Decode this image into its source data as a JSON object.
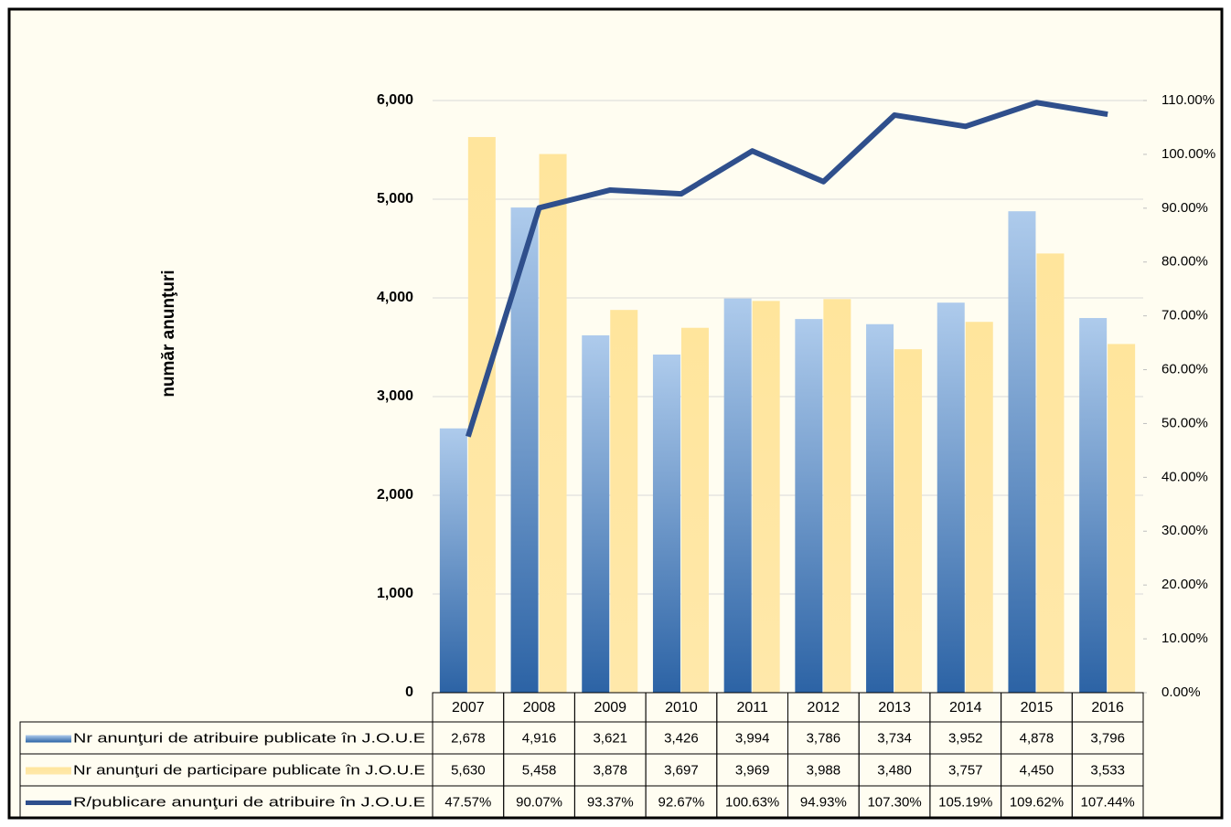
{
  "chart_data": {
    "type": "bar",
    "y_label": "număr anunţuri",
    "categories": [
      "2007",
      "2008",
      "2009",
      "2010",
      "2011",
      "2012",
      "2013",
      "2014",
      "2015",
      "2016"
    ],
    "series": [
      {
        "name": "Nr anunţuri de atribuire publicate în J.O.U.E",
        "color": "#4f86c6",
        "type": "bar",
        "values": [
          2678,
          4916,
          3621,
          3426,
          3994,
          3786,
          3734,
          3952,
          4878,
          3796
        ],
        "value_labels": [
          "2,678",
          "4,916",
          "3,621",
          "3,426",
          "3,994",
          "3,786",
          "3,734",
          "3,952",
          "4,878",
          "3,796"
        ]
      },
      {
        "name": "Nr anunţuri de participare publicate în J.O.U.E",
        "color": "#ffe59c",
        "type": "bar",
        "values": [
          5630,
          5458,
          3878,
          3697,
          3969,
          3988,
          3480,
          3757,
          4450,
          3533
        ],
        "value_labels": [
          "5,630",
          "5,458",
          "3,878",
          "3,697",
          "3,969",
          "3,988",
          "3,480",
          "3,757",
          "4,450",
          "3,533"
        ]
      },
      {
        "name": "R/publicare anunţuri de atribuire în J.O.U.E",
        "color": "#2f4f8c",
        "type": "line",
        "axis": "y2",
        "values": [
          47.57,
          90.07,
          93.37,
          92.67,
          100.63,
          94.93,
          107.3,
          105.19,
          109.62,
          107.44
        ],
        "value_labels": [
          "47.57%",
          "90.07%",
          "93.37%",
          "92.67%",
          "100.63%",
          "94.93%",
          "107.30%",
          "105.19%",
          "109.62%",
          "107.44%"
        ]
      }
    ],
    "ylim": [
      0,
      6000
    ],
    "yticks": [
      0,
      {
        "value": 1000,
        "label": "1,000"
      },
      {
        "value": 2000,
        "label": "2,000"
      },
      {
        "value": 3000,
        "label": "3,000"
      },
      {
        "value": 4000,
        "label": "4,000"
      },
      {
        "value": 5000,
        "label": "5,000"
      },
      {
        "value": 6000,
        "label": "6,000"
      }
    ],
    "y2lim": [
      0,
      110
    ],
    "y2ticks": [
      {
        "value": 0,
        "label": "0.00%"
      },
      {
        "value": 10,
        "label": "10.00%"
      },
      {
        "value": 20,
        "label": "20.00%"
      },
      {
        "value": 30,
        "label": "30.00%"
      },
      {
        "value": 40,
        "label": "40.00%"
      },
      {
        "value": 50,
        "label": "50.00%"
      },
      {
        "value": 60,
        "label": "60.00%"
      },
      {
        "value": 70,
        "label": "70.00%"
      },
      {
        "value": 80,
        "label": "80.00%"
      },
      {
        "value": 90,
        "label": "90.00%"
      },
      {
        "value": 100,
        "label": "100.00%"
      },
      {
        "value": 110,
        "label": "110.00%"
      }
    ],
    "grid": true
  }
}
